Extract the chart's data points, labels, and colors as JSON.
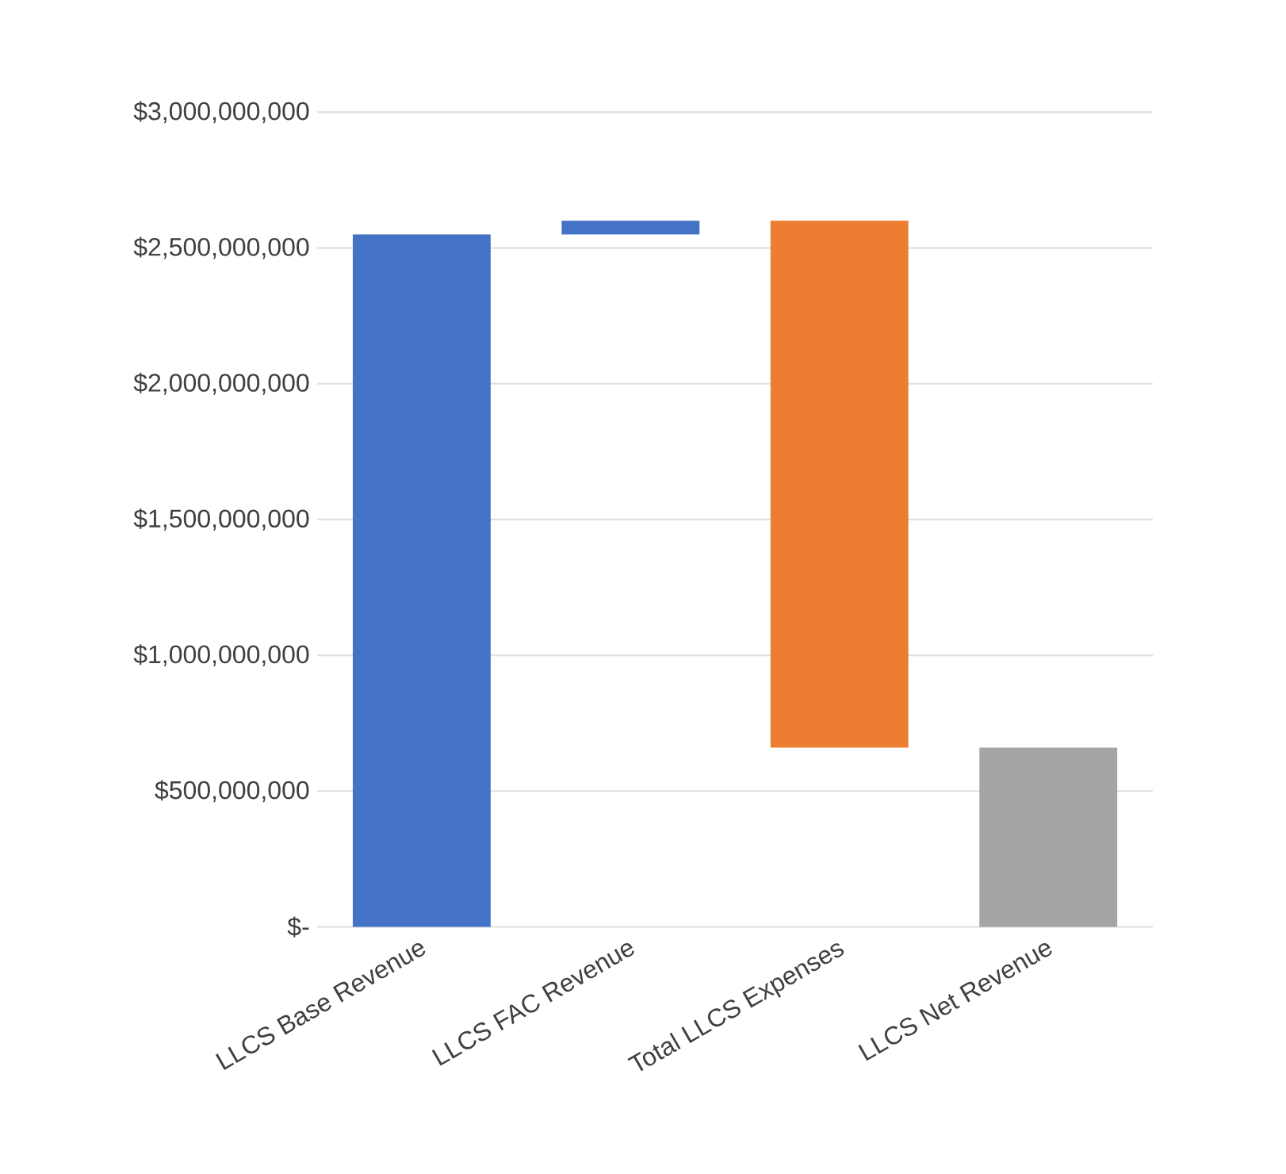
{
  "chart_data": {
    "type": "bar",
    "categories": [
      "LLCS Base Revenue",
      "LLCS FAC Revenue",
      "Total LLCS Expenses",
      "LLCS Net Revenue"
    ],
    "values": [
      2550000000,
      50000000,
      -1940000000,
      660000000
    ],
    "base": [
      0,
      2550000000,
      2600000000,
      0
    ],
    "colors": [
      "#4472c4",
      "#4472c4",
      "#ed7d31",
      "#a5a5a5"
    ],
    "ylim": [
      0,
      3000000000
    ],
    "yticks": [
      {
        "value": 0,
        "label": "$-"
      },
      {
        "value": 500000000,
        "label": "$500,000,000"
      },
      {
        "value": 1000000000,
        "label": "$1,000,000,000"
      },
      {
        "value": 1500000000,
        "label": "$1,500,000,000"
      },
      {
        "value": 2000000000,
        "label": "$2,000,000,000"
      },
      {
        "value": 2500000000,
        "label": "$2,500,000,000"
      },
      {
        "value": 3000000000,
        "label": "$3,000,000,000"
      }
    ],
    "grid": "y"
  }
}
